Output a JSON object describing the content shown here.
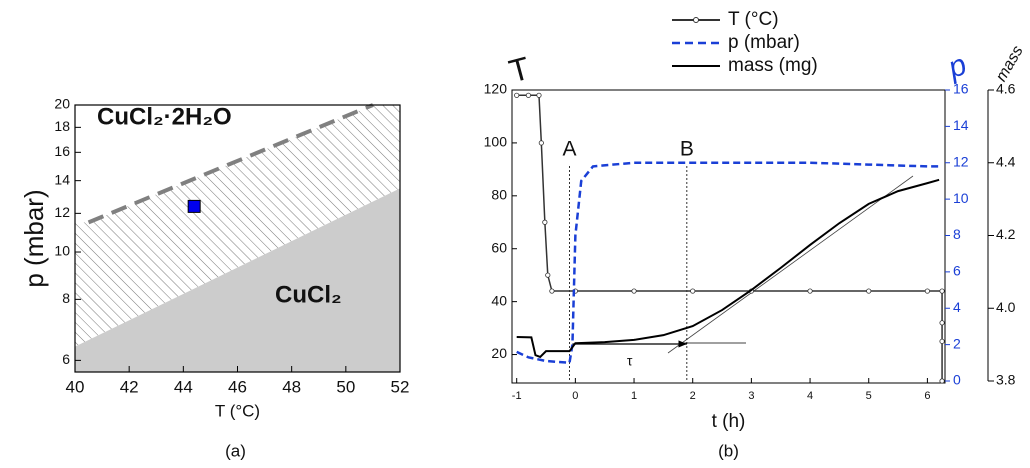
{
  "chart_data": [
    {
      "type": "area",
      "xlabel": "T (°C)",
      "ylabel": "p (mbar)",
      "caption": "(a)",
      "xlim": [
        40,
        52
      ],
      "xticks": [
        40,
        42,
        44,
        46,
        48,
        50,
        52
      ],
      "ylim": [
        5.68,
        20
      ],
      "yscale": "log",
      "yticks": [
        6,
        8,
        10,
        12,
        14,
        16,
        18,
        20
      ],
      "series": [
        {
          "x": [
            40,
            52
          ],
          "values": [
            6.4,
            13.5
          ],
          "color": "#cccccc",
          "fill": "below"
        },
        {
          "x": [
            40.5,
            51
          ],
          "values": [
            11.5,
            20
          ],
          "color": "#808080",
          "style": "dashed"
        }
      ],
      "points": [
        {
          "x": 44.4,
          "y": 12.4,
          "color": "#0000ee"
        }
      ],
      "annotations": [
        "CuCl₂·2H₂O",
        "CuCl₂"
      ]
    },
    {
      "type": "line",
      "xlabel": "t (h)",
      "ylabel": "T",
      "y2label": "p",
      "y3label": "mass",
      "caption": "(b)",
      "xlim": [
        -1.08,
        6.3
      ],
      "xticks": [
        -1,
        0,
        1,
        2,
        3,
        4,
        5,
        6
      ],
      "ylim": [
        10,
        120
      ],
      "yticks": [
        20,
        40,
        60,
        80,
        100,
        120
      ],
      "y2lim": [
        0,
        16
      ],
      "y2ticks": [
        0,
        2,
        4,
        6,
        8,
        10,
        12,
        14,
        16
      ],
      "y3lim": [
        3.8,
        4.6
      ],
      "y3ticks": [
        3.8,
        {
          "value": 4,
          "label": "4.0"
        },
        4.2,
        4.4,
        4.6
      ],
      "series": [
        {
          "name": "T (°C)",
          "color": "#333333",
          "marker": "circle",
          "x": [
            -1,
            -0.8,
            -0.62,
            -0.58,
            -0.52,
            -0.47,
            -0.4,
            0,
            1,
            2,
            3,
            4,
            5,
            6,
            6.25,
            6.25,
            6.25,
            6.25
          ],
          "values": [
            118,
            118,
            118,
            100,
            70,
            50,
            44,
            44,
            44,
            44,
            44,
            44,
            44,
            44,
            44,
            32,
            25,
            10
          ]
        },
        {
          "name": "p (mbar)",
          "color": "#1a3fd6",
          "style": "dashed",
          "axis": "y2",
          "x": [
            -1,
            -0.8,
            -0.5,
            -0.1,
            -0.05,
            0,
            0.1,
            0.3,
            1,
            2,
            3,
            4,
            5,
            6,
            6.25
          ],
          "values": [
            1.6,
            1.3,
            1.1,
            1.0,
            2,
            8,
            11,
            11.8,
            12,
            12,
            12,
            12,
            11.9,
            11.8,
            11.8
          ]
        },
        {
          "name": "mass (mg)",
          "color": "#000000",
          "axis": "y3",
          "x": [
            -1,
            -0.75,
            -0.68,
            -0.6,
            -0.5,
            -0.1,
            0,
            0.5,
            1,
            1.5,
            2,
            2.5,
            3,
            3.5,
            4,
            4.5,
            5,
            5.5,
            6,
            6.2
          ],
          "values": [
            3.921,
            3.92,
            3.871,
            3.866,
            3.882,
            3.882,
            3.904,
            3.907,
            3.913,
            3.926,
            3.951,
            3.995,
            4.05,
            4.111,
            4.174,
            4.234,
            4.287,
            4.322,
            4.344,
            4.353
          ]
        }
      ],
      "annotations": [
        {
          "text": "A",
          "x": -0.1
        },
        {
          "text": "B",
          "x": 1.9
        }
      ],
      "arrow": {
        "text": "τ",
        "x": [
          -0.05,
          1.9
        ],
        "y": 24
      }
    }
  ]
}
